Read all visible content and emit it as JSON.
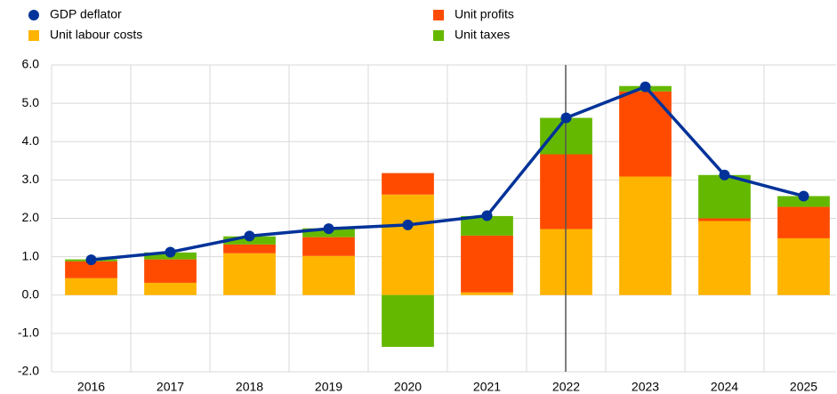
{
  "chart_data": {
    "type": "bar",
    "categories": [
      "2016",
      "2017",
      "2018",
      "2019",
      "2020",
      "2021",
      "2022",
      "2023",
      "2024",
      "2025"
    ],
    "series": [
      {
        "name": "Unit labour costs",
        "color": "#ffb400",
        "values": [
          0.44,
          0.32,
          1.09,
          1.02,
          2.62,
          0.07,
          1.72,
          3.09,
          1.93,
          1.48
        ]
      },
      {
        "name": "Unit profits",
        "color": "#ff4b00",
        "values": [
          0.44,
          0.61,
          0.23,
          0.49,
          0.56,
          1.48,
          1.95,
          2.22,
          0.07,
          0.82
        ]
      },
      {
        "name": "Unit taxes",
        "color": "#65b800",
        "values": [
          0.05,
          0.18,
          0.21,
          0.23,
          -1.35,
          0.51,
          0.95,
          0.14,
          1.13,
          0.28
        ]
      },
      {
        "name": "GDP deflator",
        "color": "#003299",
        "type": "line",
        "values": [
          0.92,
          1.12,
          1.54,
          1.73,
          1.83,
          2.07,
          4.62,
          5.43,
          3.13,
          2.58
        ]
      }
    ],
    "ylim": [
      -2,
      6
    ],
    "yticks": [
      {
        "value": -2,
        "label": "-2.0"
      },
      {
        "value": -1,
        "label": "-1.0"
      },
      {
        "value": 0,
        "label": "0.0"
      },
      {
        "value": 1,
        "label": "1.0"
      },
      {
        "value": 2,
        "label": "2.0"
      },
      {
        "value": 3,
        "label": "3.0"
      },
      {
        "value": 4,
        "label": "4.0"
      },
      {
        "value": 5,
        "label": "5.0"
      },
      {
        "value": 6,
        "label": "6.0"
      }
    ],
    "grid": true
  }
}
